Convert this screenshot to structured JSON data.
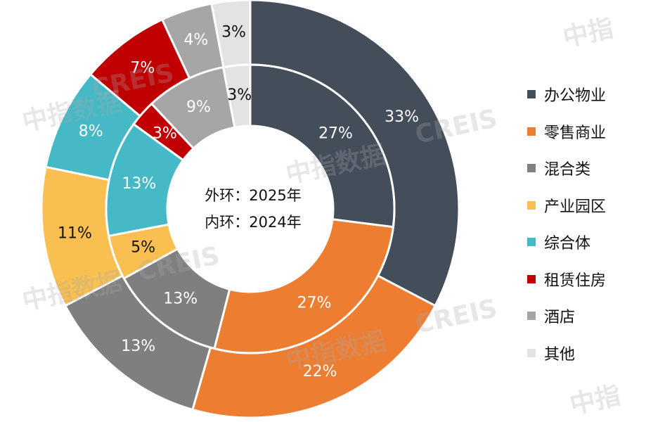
{
  "watermark": {
    "text_cn": "中指数据",
    "text_en": "CREIS",
    "text_short": "中指"
  },
  "center": {
    "line1": "外环：2025年",
    "line2": "内环：2024年"
  },
  "chart_data": {
    "type": "donut",
    "title": "",
    "categories": [
      "办公物业",
      "零售商业",
      "混合类",
      "产业园区",
      "综合体",
      "租赁住房",
      "酒店",
      "其他"
    ],
    "colors": [
      "#444d5a",
      "#ed7d31",
      "#7f7f7f",
      "#f9bf50",
      "#45b9c6",
      "#c00000",
      "#a6a6a6",
      "#e3e3e3"
    ],
    "label_colors": [
      "#ffffff",
      "#ffffff",
      "#ffffff",
      "#111111",
      "#ffffff",
      "#ffffff",
      "#ffffff",
      "#111111"
    ],
    "series": [
      {
        "name": "外环：2025年",
        "ring": "outer",
        "values": [
          33,
          22,
          13,
          11,
          8,
          7,
          4,
          3
        ],
        "labels": [
          "33%",
          "22%",
          "13%",
          "11%",
          "8%",
          "7%",
          "4%",
          "3%"
        ]
      },
      {
        "name": "内环：2024年",
        "ring": "inner",
        "values": [
          27,
          27,
          13,
          5,
          13,
          3,
          9,
          3
        ],
        "labels": [
          "27%",
          "27%",
          "13%",
          "5%",
          "13%",
          "3%",
          "9%",
          "3%"
        ]
      }
    ],
    "legend_position": "right"
  }
}
